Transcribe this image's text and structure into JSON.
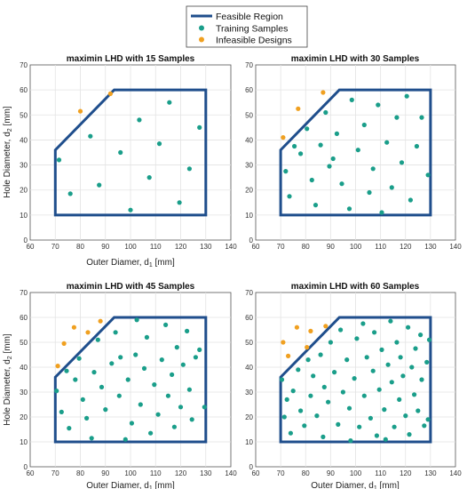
{
  "legend": {
    "entries": [
      {
        "label": "Feasible Region",
        "kind": "line",
        "color": "#1f4e8c"
      },
      {
        "label": "Training Samples",
        "kind": "marker",
        "color": "#1a9e8a"
      },
      {
        "label": "Infeasible Designs",
        "kind": "marker",
        "color": "#f0a020"
      }
    ]
  },
  "chart_data": [
    {
      "type": "scatter",
      "title": "maximin LHD with 15 Samples",
      "xlabel": {
        "main": "Outer Diamer, d",
        "sub": "1",
        "unit": " [mm]"
      },
      "ylabel": {
        "main": "Hole Diameter, d",
        "sub": "2",
        "unit": " [mm]"
      },
      "xlim": [
        60,
        140
      ],
      "ylim": [
        0,
        70
      ],
      "xticks": [
        60,
        70,
        80,
        90,
        100,
        110,
        120,
        130,
        140
      ],
      "yticks": [
        0,
        10,
        20,
        30,
        40,
        50,
        60,
        70
      ],
      "grid": true,
      "feasible_region": [
        [
          70,
          10
        ],
        [
          130,
          10
        ],
        [
          130,
          60
        ],
        [
          93.5,
          60
        ],
        [
          70,
          36
        ],
        [
          70,
          10
        ]
      ],
      "series": [
        {
          "name": "Training Samples",
          "points": [
            [
              71.5,
              32
            ],
            [
              76,
              18.5
            ],
            [
              84,
              41.5
            ],
            [
              87.5,
              22
            ],
            [
              96,
              35
            ],
            [
              100,
              12
            ],
            [
              103.5,
              48
            ],
            [
              107.5,
              25
            ],
            [
              111.5,
              38.5
            ],
            [
              115.5,
              55
            ],
            [
              119.5,
              15
            ],
            [
              123.5,
              28.5
            ],
            [
              127.5,
              45
            ]
          ]
        },
        {
          "name": "Infeasible Designs",
          "points": [
            [
              80,
              51.5
            ],
            [
              92,
              58.5
            ]
          ]
        }
      ]
    },
    {
      "type": "scatter",
      "title": "maximin LHD with 30 Samples",
      "xlabel": {
        "main": "",
        "sub": "",
        "unit": ""
      },
      "ylabel": {
        "main": "",
        "sub": "",
        "unit": ""
      },
      "xlim": [
        60,
        140
      ],
      "ylim": [
        0,
        70
      ],
      "xticks": [
        60,
        70,
        80,
        90,
        100,
        110,
        120,
        130,
        140
      ],
      "yticks": [
        0,
        10,
        20,
        30,
        40,
        50,
        60,
        70
      ],
      "grid": true,
      "feasible_region": [
        [
          70,
          10
        ],
        [
          130,
          10
        ],
        [
          130,
          60
        ],
        [
          93.5,
          60
        ],
        [
          70,
          36
        ],
        [
          70,
          10
        ]
      ],
      "series": [
        {
          "name": "Training Samples",
          "points": [
            [
              72,
              27.5
            ],
            [
              73.5,
              17.5
            ],
            [
              75.5,
              37.5
            ],
            [
              78,
              34.5
            ],
            [
              80.5,
              44.5
            ],
            [
              82.5,
              24
            ],
            [
              84,
              14
            ],
            [
              86,
              38
            ],
            [
              88,
              51
            ],
            [
              89.5,
              29.5
            ],
            [
              91,
              32.5
            ],
            [
              92.5,
              42.5
            ],
            [
              94.5,
              22.5
            ],
            [
              97.5,
              12.5
            ],
            [
              98.5,
              56
            ],
            [
              101,
              36
            ],
            [
              103.5,
              46
            ],
            [
              105.5,
              19
            ],
            [
              107,
              28.5
            ],
            [
              109,
              54
            ],
            [
              110.5,
              11
            ],
            [
              112.5,
              39
            ],
            [
              114.5,
              21
            ],
            [
              116.5,
              49
            ],
            [
              118.5,
              31
            ],
            [
              120.5,
              57.5
            ],
            [
              122,
              16
            ],
            [
              124.5,
              37.5
            ],
            [
              126.5,
              49
            ],
            [
              129,
              26
            ]
          ]
        },
        {
          "name": "Infeasible Designs",
          "points": [
            [
              71,
              41
            ],
            [
              77,
              52.5
            ],
            [
              87,
              59
            ]
          ]
        }
      ]
    },
    {
      "type": "scatter",
      "title": "maximin LHD with 45 Samples",
      "xlabel": {
        "main": "Outer Diamer, d",
        "sub": "1",
        "unit": " [mm]"
      },
      "ylabel": {
        "main": "Hole Diameter, d",
        "sub": "2",
        "unit": " [mm]"
      },
      "xlim": [
        60,
        140
      ],
      "ylim": [
        0,
        70
      ],
      "xticks": [
        60,
        70,
        80,
        90,
        100,
        110,
        120,
        130,
        140
      ],
      "yticks": [
        0,
        10,
        20,
        30,
        40,
        50,
        60,
        70
      ],
      "grid": true,
      "feasible_region": [
        [
          70,
          10
        ],
        [
          130,
          10
        ],
        [
          130,
          60
        ],
        [
          93.5,
          60
        ],
        [
          70,
          36
        ],
        [
          70,
          10
        ]
      ],
      "series": [
        {
          "name": "Training Samples",
          "points": [
            [
              70.5,
              30.5
            ],
            [
              72.5,
              22
            ],
            [
              74.5,
              38.5
            ],
            [
              75.5,
              15.5
            ],
            [
              78,
              35
            ],
            [
              79.5,
              43.5
            ],
            [
              81,
              27
            ],
            [
              82.5,
              19.5
            ],
            [
              84.5,
              11.5
            ],
            [
              85.5,
              38
            ],
            [
              87,
              51
            ],
            [
              88.5,
              32
            ],
            [
              90,
              23
            ],
            [
              92.5,
              41.5
            ],
            [
              94,
              54
            ],
            [
              95.5,
              28.5
            ],
            [
              96,
              44
            ],
            [
              98,
              11
            ],
            [
              99,
              35
            ],
            [
              100.5,
              17.5
            ],
            [
              102,
              45
            ],
            [
              102.5,
              59
            ],
            [
              104,
              25
            ],
            [
              105.5,
              39.5
            ],
            [
              106.5,
              52
            ],
            [
              108,
              13.5
            ],
            [
              109.5,
              33
            ],
            [
              111,
              21
            ],
            [
              112.5,
              43
            ],
            [
              114,
              57
            ],
            [
              115,
              28.5
            ],
            [
              116.5,
              37
            ],
            [
              117.5,
              16
            ],
            [
              118.5,
              48
            ],
            [
              120,
              24
            ],
            [
              121,
              41
            ],
            [
              122.5,
              54.5
            ],
            [
              123.5,
              31
            ],
            [
              124.5,
              19
            ],
            [
              126,
              44
            ],
            [
              127.5,
              47
            ],
            [
              129.5,
              24
            ]
          ]
        },
        {
          "name": "Infeasible Designs",
          "points": [
            [
              71,
              40.5
            ],
            [
              73.5,
              49.5
            ],
            [
              77.5,
              56
            ],
            [
              83,
              54
            ],
            [
              88,
              58.5
            ]
          ]
        }
      ]
    },
    {
      "type": "scatter",
      "title": "maximin LHD with 60 Samples",
      "xlabel": {
        "main": "Outer Diamer, d",
        "sub": "1",
        "unit": " [mm]"
      },
      "ylabel": {
        "main": "",
        "sub": "",
        "unit": ""
      },
      "xlim": [
        60,
        140
      ],
      "ylim": [
        0,
        70
      ],
      "xticks": [
        60,
        70,
        80,
        90,
        100,
        110,
        120,
        130,
        140
      ],
      "yticks": [
        0,
        10,
        20,
        30,
        40,
        50,
        60,
        70
      ],
      "grid": true,
      "feasible_region": [
        [
          70,
          10
        ],
        [
          130,
          10
        ],
        [
          130,
          60
        ],
        [
          93.5,
          60
        ],
        [
          70,
          36
        ],
        [
          70,
          10
        ]
      ],
      "series": [
        {
          "name": "Training Samples",
          "points": [
            [
              70.5,
              35
            ],
            [
              71.5,
              20
            ],
            [
              72.5,
              27
            ],
            [
              74,
              13.5
            ],
            [
              75,
              30.5
            ],
            [
              77,
              39
            ],
            [
              78,
              22.5
            ],
            [
              79.5,
              16.5
            ],
            [
              81,
              43
            ],
            [
              82,
              28.5
            ],
            [
              83,
              36.5
            ],
            [
              84.5,
              20.5
            ],
            [
              86,
              45
            ],
            [
              87,
              12
            ],
            [
              87.5,
              32
            ],
            [
              89,
              26
            ],
            [
              90,
              50
            ],
            [
              91.5,
              38
            ],
            [
              93,
              17
            ],
            [
              94,
              55
            ],
            [
              95,
              30
            ],
            [
              96.5,
              43
            ],
            [
              97.5,
              23.5
            ],
            [
              98,
              10.5
            ],
            [
              99.5,
              35.5
            ],
            [
              100.5,
              51.5
            ],
            [
              101.5,
              16
            ],
            [
              103,
              57.5
            ],
            [
              103.5,
              28.5
            ],
            [
              104.5,
              44
            ],
            [
              106,
              19.5
            ],
            [
              107,
              38.5
            ],
            [
              107.5,
              54
            ],
            [
              108.5,
              12.5
            ],
            [
              109.5,
              31
            ],
            [
              110.5,
              47
            ],
            [
              111.5,
              23
            ],
            [
              112,
              11
            ],
            [
              113,
              41
            ],
            [
              114,
              58.5
            ],
            [
              114.5,
              34
            ],
            [
              115.5,
              16
            ],
            [
              116.5,
              50
            ],
            [
              117.5,
              27
            ],
            [
              118,
              44
            ],
            [
              119,
              36.5
            ],
            [
              120,
              20.5
            ],
            [
              121,
              56
            ],
            [
              121.5,
              13
            ],
            [
              122.5,
              40
            ],
            [
              123.5,
              29
            ],
            [
              124,
              47.5
            ],
            [
              125,
              22.5
            ],
            [
              126,
              53
            ],
            [
              126.5,
              35
            ],
            [
              127.5,
              16.5
            ],
            [
              128.5,
              42
            ],
            [
              129,
              19
            ],
            [
              129.5,
              51
            ]
          ]
        },
        {
          "name": "Infeasible Designs",
          "points": [
            [
              71,
              50
            ],
            [
              73,
              44.5
            ],
            [
              76.5,
              56
            ],
            [
              80.5,
              48
            ],
            [
              82,
              54.5
            ],
            [
              88,
              56.5
            ]
          ]
        }
      ]
    }
  ]
}
